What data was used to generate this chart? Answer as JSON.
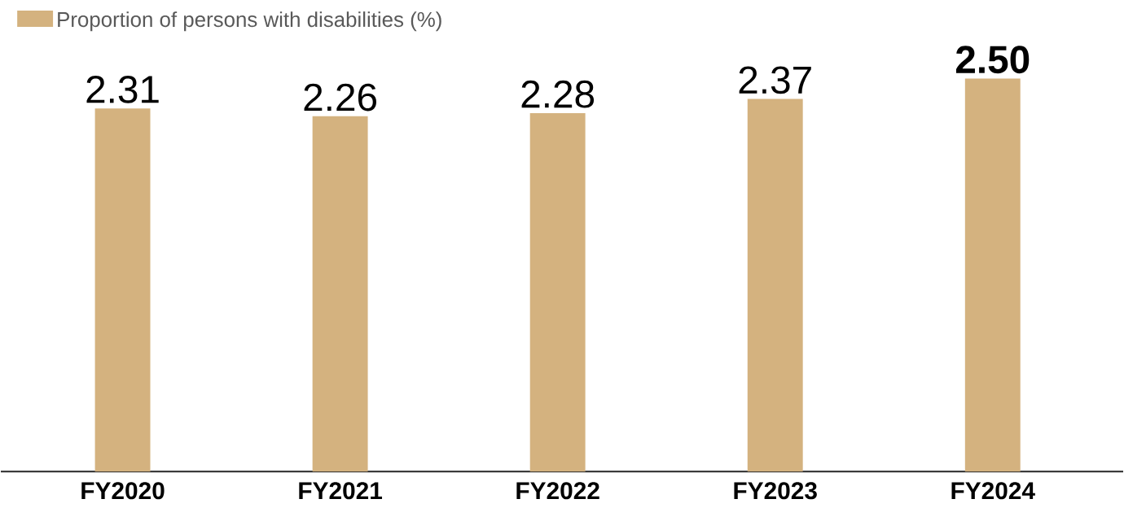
{
  "chart_data": {
    "type": "bar",
    "categories": [
      "FY2020",
      "FY2021",
      "FY2022",
      "FY2023",
      "FY2024"
    ],
    "series": [
      {
        "name": "Proportion of persons with disabilities (%)",
        "color": "#d4b27f",
        "values": [
          2.31,
          2.26,
          2.28,
          2.37,
          2.5
        ],
        "value_labels": [
          "2.31",
          "2.26",
          "2.28",
          "2.37",
          "**2.50**"
        ]
      }
    ],
    "legend": "top left"
  }
}
